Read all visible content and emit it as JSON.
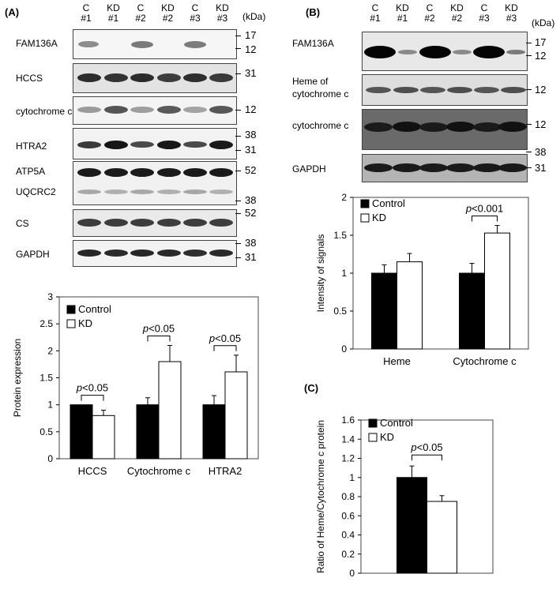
{
  "panel_labels": {
    "A": "(A)",
    "B": "(B)",
    "C": "(C)"
  },
  "kda_label": "(kDa)",
  "lanes_A": [
    {
      "top": "C",
      "bottom": "#1"
    },
    {
      "top": "KD",
      "bottom": "#1"
    },
    {
      "top": "C",
      "bottom": "#2"
    },
    {
      "top": "KD",
      "bottom": "#2"
    },
    {
      "top": "C",
      "bottom": "#3"
    },
    {
      "top": "KD",
      "bottom": "#3"
    }
  ],
  "lanes_B": [
    {
      "top": "C",
      "bottom": "#1"
    },
    {
      "top": "KD",
      "bottom": "#1"
    },
    {
      "top": "C",
      "bottom": "#2"
    },
    {
      "top": "KD",
      "bottom": "#2"
    },
    {
      "top": "C",
      "bottom": "#3"
    },
    {
      "top": "KD",
      "bottom": "#3"
    }
  ],
  "blots_A": [
    {
      "label": "FAM136A",
      "markers": [
        "17",
        "12"
      ]
    },
    {
      "label": "HCCS",
      "markers": [
        "31"
      ]
    },
    {
      "label": "cytochrome c",
      "markers": [
        "12"
      ]
    },
    {
      "label": "HTRA2",
      "markers": [
        "38",
        "31"
      ]
    },
    {
      "label": "ATP5A",
      "label2": "UQCRC2",
      "markers": [
        "52",
        "38"
      ]
    },
    {
      "label": "CS",
      "markers": [
        "52"
      ]
    },
    {
      "label": "GAPDH",
      "markers": [
        "38",
        "31"
      ]
    }
  ],
  "blots_B": [
    {
      "label": "FAM136A",
      "markers": [
        "17",
        "12"
      ]
    },
    {
      "label": "Heme of",
      "label2": "cytochrome c",
      "markers": [
        "12"
      ]
    },
    {
      "label": "cytochrome c",
      "markers": [
        "12",
        "38"
      ]
    },
    {
      "label": "GAPDH",
      "markers": [
        "31"
      ]
    }
  ],
  "chart_data": [
    {
      "panel": "A",
      "type": "bar",
      "ylabel": "Protein expression",
      "xlabel": "",
      "ylim": [
        0,
        3
      ],
      "yticks": [
        "0",
        "0.5",
        "1",
        "1.5",
        "2",
        "2.5",
        "3"
      ],
      "categories": [
        "HCCS",
        "Cytochrome c",
        "HTRA2"
      ],
      "series": [
        {
          "name": "Control",
          "color": "#000000",
          "values": [
            1.0,
            1.0,
            1.0
          ],
          "errors": [
            0.0,
            0.13,
            0.17
          ]
        },
        {
          "name": "KD",
          "color": "#ffffff",
          "values": [
            0.8,
            1.8,
            1.61
          ],
          "errors": [
            0.1,
            0.3,
            0.31
          ]
        }
      ],
      "annotations": [
        "p<0.05",
        "p<0.05",
        "p<0.05"
      ],
      "legend_position": "top-left"
    },
    {
      "panel": "B",
      "type": "bar",
      "ylabel": "Intensity of signals",
      "xlabel": "",
      "ylim": [
        0,
        2
      ],
      "yticks": [
        "0",
        "0.5",
        "1",
        "1.5",
        "2"
      ],
      "categories": [
        "Heme",
        "Cytochrome c"
      ],
      "series": [
        {
          "name": "Control",
          "color": "#000000",
          "values": [
            1.0,
            1.0
          ],
          "errors": [
            0.11,
            0.13
          ]
        },
        {
          "name": "KD",
          "color": "#ffffff",
          "values": [
            1.15,
            1.53
          ],
          "errors": [
            0.11,
            0.1
          ]
        }
      ],
      "annotations": [
        "",
        "p<0.001"
      ],
      "legend_position": "top-left"
    },
    {
      "panel": "C",
      "type": "bar",
      "ylabel": "Ratio of Heme/Cytochrome c  protein",
      "xlabel": "",
      "ylim": [
        0,
        1.6
      ],
      "yticks": [
        "0",
        "0.2",
        "0.4",
        "0.6",
        "0.8",
        "1",
        "1.2",
        "1.4",
        "1.6"
      ],
      "categories": [
        ""
      ],
      "series": [
        {
          "name": "Control",
          "color": "#000000",
          "values": [
            1.0
          ],
          "errors": [
            0.12
          ]
        },
        {
          "name": "KD",
          "color": "#ffffff",
          "values": [
            0.75
          ],
          "errors": [
            0.06
          ]
        }
      ],
      "annotations": [
        "p<0.05"
      ],
      "legend_position": "top-left"
    }
  ]
}
